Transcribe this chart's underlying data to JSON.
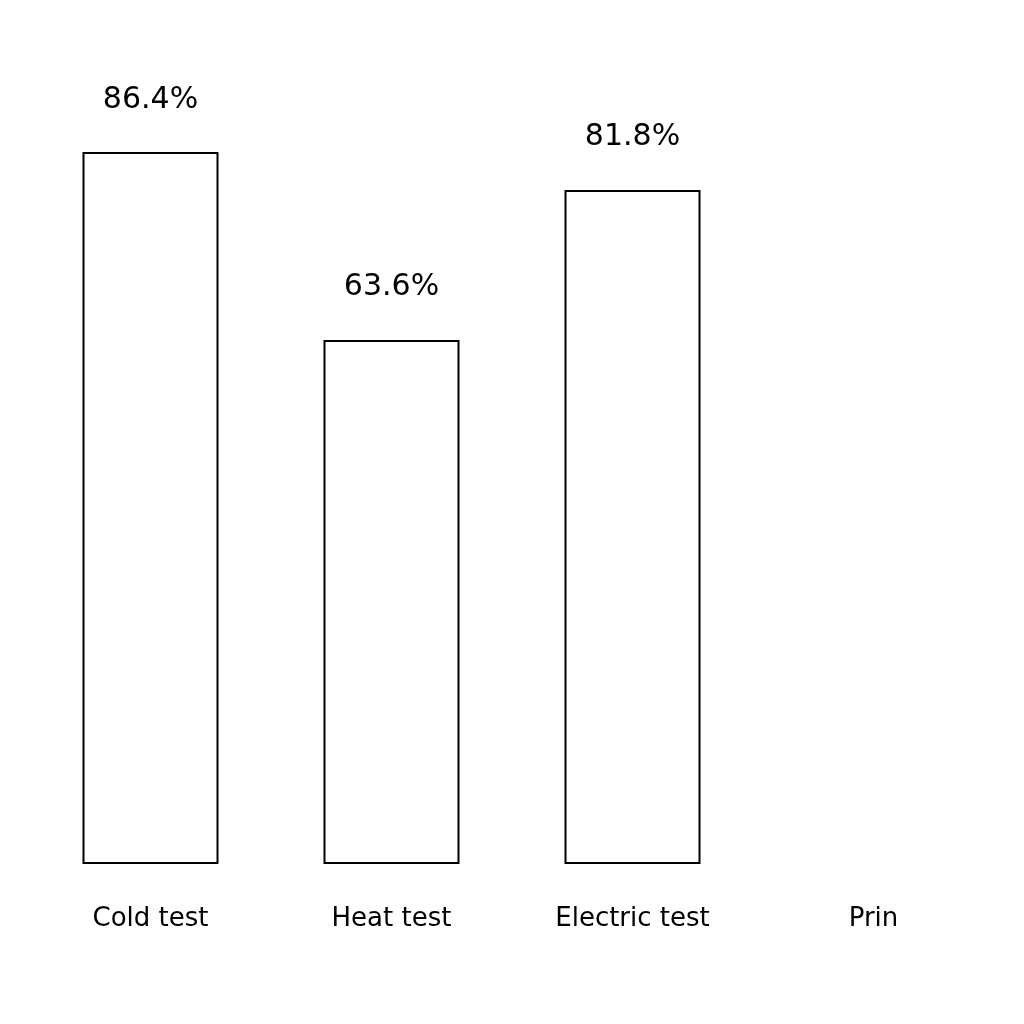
{
  "chart_data": {
    "type": "bar",
    "categories": [
      "Cold test",
      "Heat test",
      "Electric test",
      "Prin"
    ],
    "values": [
      86.4,
      63.6,
      81.8,
      null
    ],
    "value_labels": [
      "86.4%",
      "63.6%",
      "81.8%",
      null
    ],
    "colors": [
      "#ffffff",
      "#ffffff",
      "#ffffff",
      "#ffffff"
    ],
    "tick_labels": "x"
  }
}
